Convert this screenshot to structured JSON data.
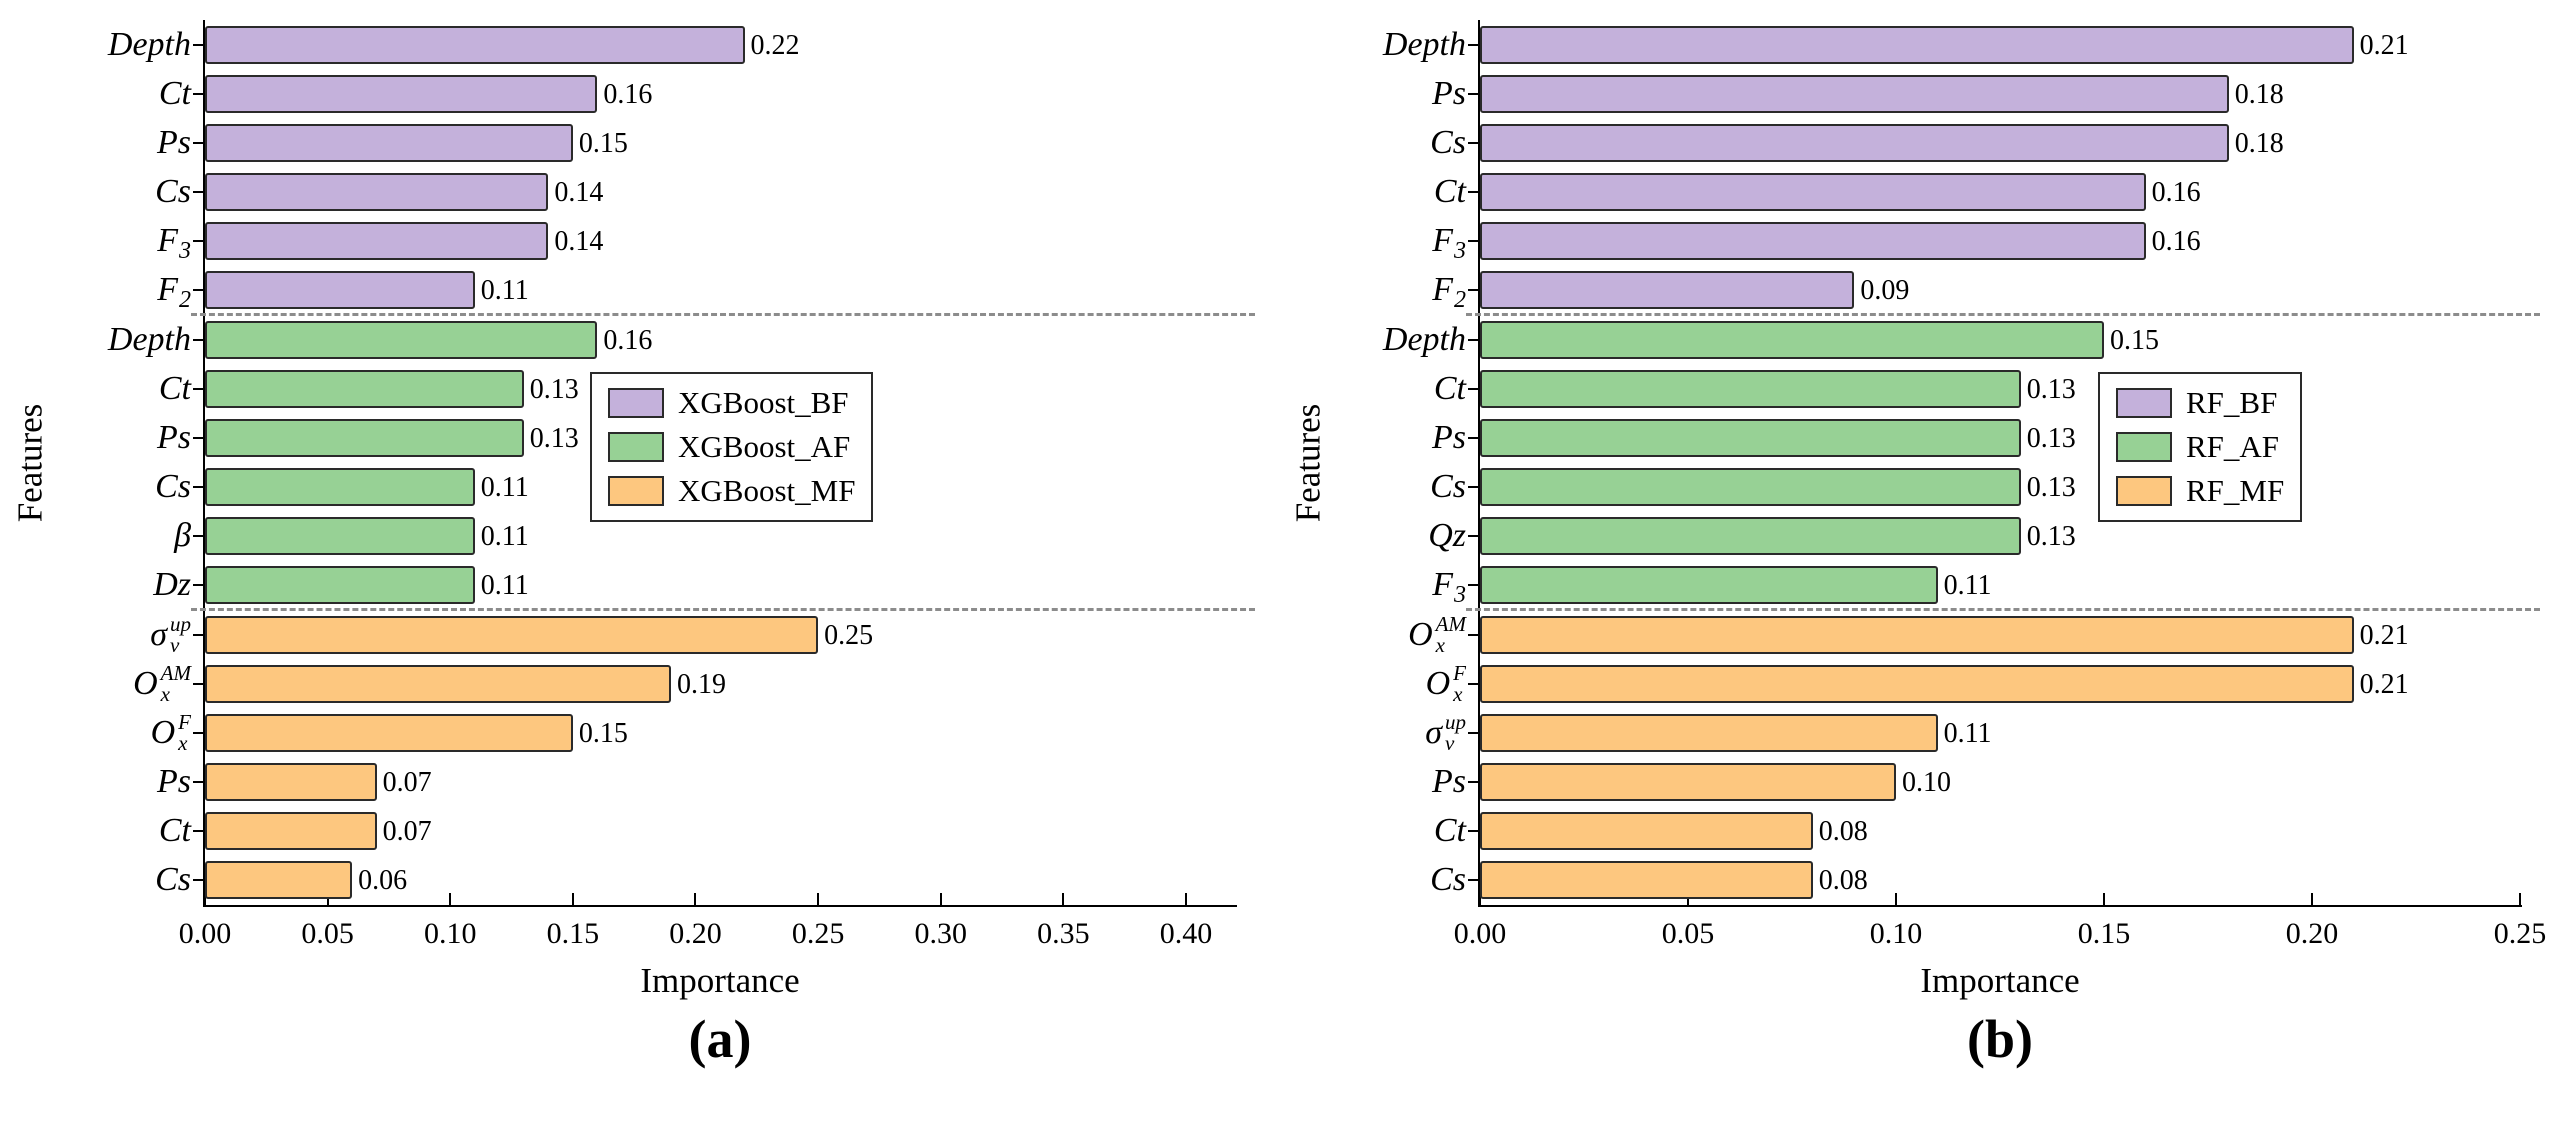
{
  "figure": {
    "background": "#ffffff"
  },
  "colors": {
    "purple_fill": "#C4B1DB",
    "green_fill": "#97D195",
    "orange_fill": "#FDC77F",
    "bar_border": "#2a2a2a",
    "separator": "#8c8c8c",
    "axis": "#000000"
  },
  "chart_data": [
    {
      "type": "bar",
      "orientation": "horizontal",
      "panel_label": "(a)",
      "title": "",
      "xlabel": "Importance",
      "ylabel": "Features",
      "xlim": [
        0,
        0.42
      ],
      "xticks": [
        "0.00",
        "0.05",
        "0.10",
        "0.15",
        "0.20",
        "0.25",
        "0.30",
        "0.35",
        "0.40"
      ],
      "grid": false,
      "legend_position": "inside-center",
      "legend": [
        {
          "label": "XGBoost_BF",
          "color": "#C4B1DB"
        },
        {
          "label": "XGBoost_AF",
          "color": "#97D195"
        },
        {
          "label": "XGBoost_MF",
          "color": "#FDC77F"
        }
      ],
      "groups": [
        {
          "series": "XGBoost_BF",
          "color": "#C4B1DB",
          "bars": [
            {
              "feature": {
                "main": "Depth",
                "sub": "",
                "sup": ""
              },
              "value": 0.22
            },
            {
              "feature": {
                "main": "Ct",
                "sub": "",
                "sup": ""
              },
              "value": 0.16
            },
            {
              "feature": {
                "main": "Ps",
                "sub": "",
                "sup": ""
              },
              "value": 0.15
            },
            {
              "feature": {
                "main": "Cs",
                "sub": "",
                "sup": ""
              },
              "value": 0.14
            },
            {
              "feature": {
                "main": "F",
                "sub": "3",
                "sup": ""
              },
              "value": 0.14
            },
            {
              "feature": {
                "main": "F",
                "sub": "2",
                "sup": ""
              },
              "value": 0.11
            }
          ]
        },
        {
          "series": "XGBoost_AF",
          "color": "#97D195",
          "bars": [
            {
              "feature": {
                "main": "Depth",
                "sub": "",
                "sup": ""
              },
              "value": 0.16
            },
            {
              "feature": {
                "main": "Ct",
                "sub": "",
                "sup": ""
              },
              "value": 0.13
            },
            {
              "feature": {
                "main": "Ps",
                "sub": "",
                "sup": ""
              },
              "value": 0.13
            },
            {
              "feature": {
                "main": "Cs",
                "sub": "",
                "sup": ""
              },
              "value": 0.11
            },
            {
              "feature": {
                "main": "β",
                "sub": "",
                "sup": ""
              },
              "value": 0.11
            },
            {
              "feature": {
                "main": "Dz",
                "sub": "",
                "sup": ""
              },
              "value": 0.11
            }
          ]
        },
        {
          "series": "XGBoost_MF",
          "color": "#FDC77F",
          "bars": [
            {
              "feature": {
                "main": "σ",
                "sub": "v",
                "sup": "up"
              },
              "value": 0.25
            },
            {
              "feature": {
                "main": "O",
                "sub": "x",
                "sup": "AM"
              },
              "value": 0.19
            },
            {
              "feature": {
                "main": "O",
                "sub": "x",
                "sup": "F"
              },
              "value": 0.15
            },
            {
              "feature": {
                "main": "Ps",
                "sub": "",
                "sup": ""
              },
              "value": 0.07
            },
            {
              "feature": {
                "main": "Ct",
                "sub": "",
                "sup": ""
              },
              "value": 0.07
            },
            {
              "feature": {
                "main": "Cs",
                "sub": "",
                "sup": ""
              },
              "value": 0.06
            }
          ]
        }
      ]
    },
    {
      "type": "bar",
      "orientation": "horizontal",
      "panel_label": "(b)",
      "title": "",
      "xlabel": "Importance",
      "ylabel": "Features",
      "xlim": [
        0,
        0.25
      ],
      "xticks": [
        "0.00",
        "0.05",
        "0.10",
        "0.15",
        "0.20",
        "0.25"
      ],
      "grid": false,
      "legend_position": "inside-center",
      "legend": [
        {
          "label": "RF_BF",
          "color": "#C4B1DB"
        },
        {
          "label": "RF_AF",
          "color": "#97D195"
        },
        {
          "label": "RF_MF",
          "color": "#FDC77F"
        }
      ],
      "groups": [
        {
          "series": "RF_BF",
          "color": "#C4B1DB",
          "bars": [
            {
              "feature": {
                "main": "Depth",
                "sub": "",
                "sup": ""
              },
              "value": 0.21
            },
            {
              "feature": {
                "main": "Ps",
                "sub": "",
                "sup": ""
              },
              "value": 0.18
            },
            {
              "feature": {
                "main": "Cs",
                "sub": "",
                "sup": ""
              },
              "value": 0.18
            },
            {
              "feature": {
                "main": "Ct",
                "sub": "",
                "sup": ""
              },
              "value": 0.16
            },
            {
              "feature": {
                "main": "F",
                "sub": "3",
                "sup": ""
              },
              "value": 0.16
            },
            {
              "feature": {
                "main": "F",
                "sub": "2",
                "sup": ""
              },
              "value": 0.09
            }
          ]
        },
        {
          "series": "RF_AF",
          "color": "#97D195",
          "bars": [
            {
              "feature": {
                "main": "Depth",
                "sub": "",
                "sup": ""
              },
              "value": 0.15
            },
            {
              "feature": {
                "main": "Ct",
                "sub": "",
                "sup": ""
              },
              "value": 0.13
            },
            {
              "feature": {
                "main": "Ps",
                "sub": "",
                "sup": ""
              },
              "value": 0.13
            },
            {
              "feature": {
                "main": "Cs",
                "sub": "",
                "sup": ""
              },
              "value": 0.13
            },
            {
              "feature": {
                "main": "Qz",
                "sub": "",
                "sup": ""
              },
              "value": 0.13
            },
            {
              "feature": {
                "main": "F",
                "sub": "3",
                "sup": ""
              },
              "value": 0.11
            }
          ]
        },
        {
          "series": "RF_MF",
          "color": "#FDC77F",
          "bars": [
            {
              "feature": {
                "main": "O",
                "sub": "x",
                "sup": "AM"
              },
              "value": 0.21
            },
            {
              "feature": {
                "main": "O",
                "sub": "x",
                "sup": "F"
              },
              "value": 0.21
            },
            {
              "feature": {
                "main": "σ",
                "sub": "v",
                "sup": "up"
              },
              "value": 0.11
            },
            {
              "feature": {
                "main": "Ps",
                "sub": "",
                "sup": ""
              },
              "value": 0.1
            },
            {
              "feature": {
                "main": "Ct",
                "sub": "",
                "sup": ""
              },
              "value": 0.08
            },
            {
              "feature": {
                "main": "Cs",
                "sub": "",
                "sup": ""
              },
              "value": 0.08
            }
          ]
        }
      ]
    }
  ]
}
